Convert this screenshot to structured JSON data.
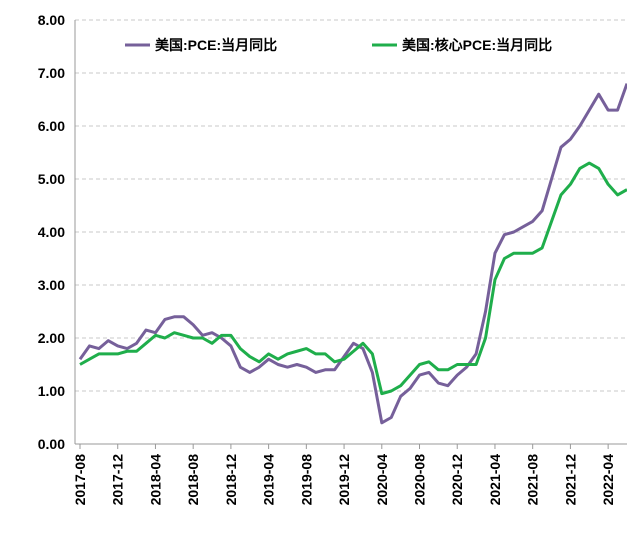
{
  "chart_data": {
    "type": "line",
    "categories": [
      "2017-08",
      null,
      null,
      null,
      "2017-12",
      null,
      null,
      null,
      "2018-04",
      null,
      null,
      null,
      "2018-08",
      null,
      null,
      null,
      "2018-12",
      null,
      null,
      null,
      "2019-04",
      null,
      null,
      null,
      "2019-08",
      null,
      null,
      null,
      "2019-12",
      null,
      null,
      null,
      "2020-04",
      null,
      null,
      null,
      "2020-08",
      null,
      null,
      null,
      "2020-12",
      null,
      null,
      null,
      "2021-04",
      null,
      null,
      null,
      "2021-08",
      null,
      null,
      null,
      "2021-12",
      null,
      null,
      null,
      "2022-04",
      null,
      null
    ],
    "series": [
      {
        "name": "美国:PCE:当月同比",
        "color": "#76609a",
        "values": [
          1.6,
          1.85,
          1.8,
          1.95,
          1.85,
          1.8,
          1.9,
          2.15,
          2.1,
          2.35,
          2.4,
          2.4,
          2.25,
          2.05,
          2.1,
          2.0,
          1.85,
          1.45,
          1.35,
          1.45,
          1.6,
          1.5,
          1.45,
          1.5,
          1.45,
          1.35,
          1.4,
          1.4,
          1.65,
          1.9,
          1.8,
          1.35,
          0.4,
          0.5,
          0.9,
          1.05,
          1.3,
          1.35,
          1.15,
          1.1,
          1.3,
          1.45,
          1.7,
          2.5,
          3.6,
          3.95,
          4.0,
          4.1,
          4.2,
          4.4,
          5.0,
          5.6,
          5.75,
          6.0,
          6.3,
          6.6,
          6.3,
          6.3,
          6.8
        ]
      },
      {
        "name": "美国:核心PCE:当月同比",
        "color": "#1fae4b",
        "values": [
          1.5,
          1.6,
          1.7,
          1.7,
          1.7,
          1.75,
          1.75,
          1.9,
          2.05,
          2.0,
          2.1,
          2.05,
          2.0,
          2.0,
          1.9,
          2.05,
          2.05,
          1.8,
          1.65,
          1.55,
          1.7,
          1.6,
          1.7,
          1.75,
          1.8,
          1.7,
          1.7,
          1.55,
          1.6,
          1.75,
          1.9,
          1.7,
          0.95,
          1.0,
          1.1,
          1.3,
          1.5,
          1.55,
          1.4,
          1.4,
          1.5,
          1.5,
          1.5,
          2.0,
          3.1,
          3.5,
          3.6,
          3.6,
          3.6,
          3.7,
          4.2,
          4.7,
          4.9,
          5.2,
          5.3,
          5.2,
          4.9,
          4.7,
          4.8
        ]
      }
    ],
    "ylim": [
      0,
      8
    ],
    "yticks": [
      {
        "value": 0,
        "label": "0.00"
      },
      {
        "value": 1,
        "label": "1.00"
      },
      {
        "value": 2,
        "label": "2.00"
      },
      {
        "value": 3,
        "label": "3.00"
      },
      {
        "value": 4,
        "label": "4.00"
      },
      {
        "value": 5,
        "label": "5.00"
      },
      {
        "value": 6,
        "label": "6.00"
      },
      {
        "value": 7,
        "label": "7.00"
      },
      {
        "value": 8,
        "label": "8.00"
      }
    ],
    "grid": true,
    "legend": "top"
  }
}
